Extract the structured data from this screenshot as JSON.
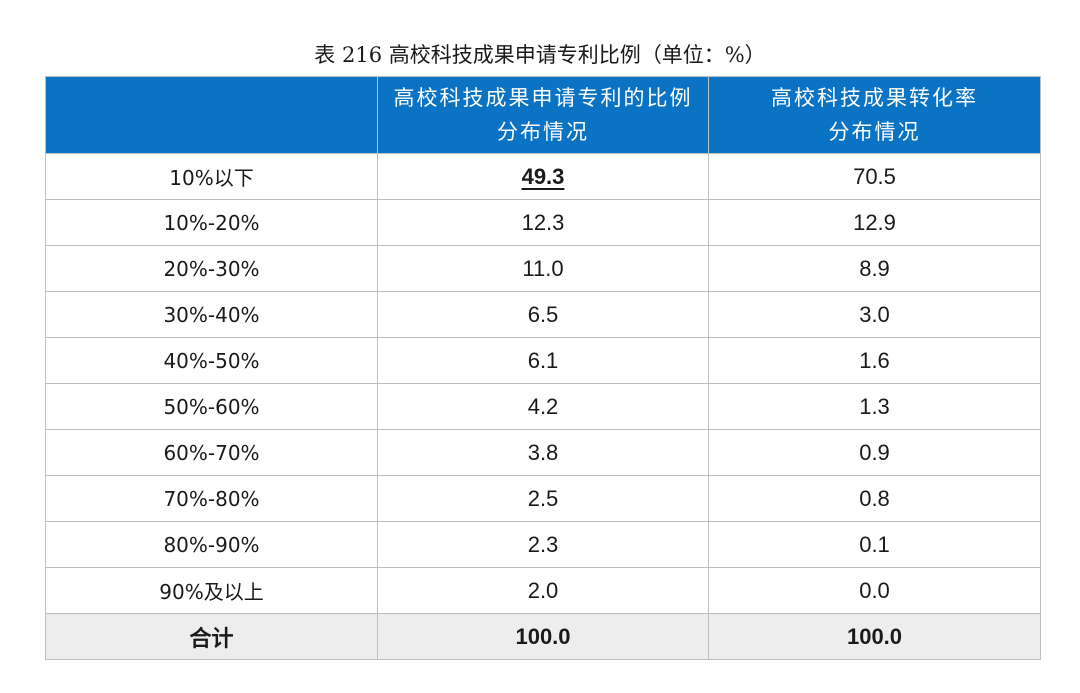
{
  "title": "表 216  高校科技成果申请专利比例（单位：%）",
  "colors": {
    "header_bg": "#0a73c4",
    "header_text": "#ffffff",
    "total_bg": "#ededed",
    "border": "#bfbfbf"
  },
  "table": {
    "headers": [
      {
        "lines": [
          ""
        ]
      },
      {
        "lines": [
          "高校科技成果申请专利的比例",
          "分布情况"
        ]
      },
      {
        "lines": [
          "高校科技成果转化率",
          "分布情况"
        ]
      }
    ],
    "rows": [
      {
        "label": "10%以下",
        "col1": "49.3",
        "col2": "70.5",
        "col1_emphasis": true
      },
      {
        "label": "10%-20%",
        "col1": "12.3",
        "col2": "12.9"
      },
      {
        "label": "20%-30%",
        "col1": "11.0",
        "col2": "8.9"
      },
      {
        "label": "30%-40%",
        "col1": "6.5",
        "col2": "3.0"
      },
      {
        "label": "40%-50%",
        "col1": "6.1",
        "col2": "1.6"
      },
      {
        "label": "50%-60%",
        "col1": "4.2",
        "col2": "1.3"
      },
      {
        "label": "60%-70%",
        "col1": "3.8",
        "col2": "0.9"
      },
      {
        "label": "70%-80%",
        "col1": "2.5",
        "col2": "0.8"
      },
      {
        "label": "80%-90%",
        "col1": "2.3",
        "col2": "0.1"
      },
      {
        "label": "90%及以上",
        "col1": "2.0",
        "col2": "0.0"
      }
    ],
    "total": {
      "label": "合计",
      "col1": "100.0",
      "col2": "100.0"
    }
  }
}
